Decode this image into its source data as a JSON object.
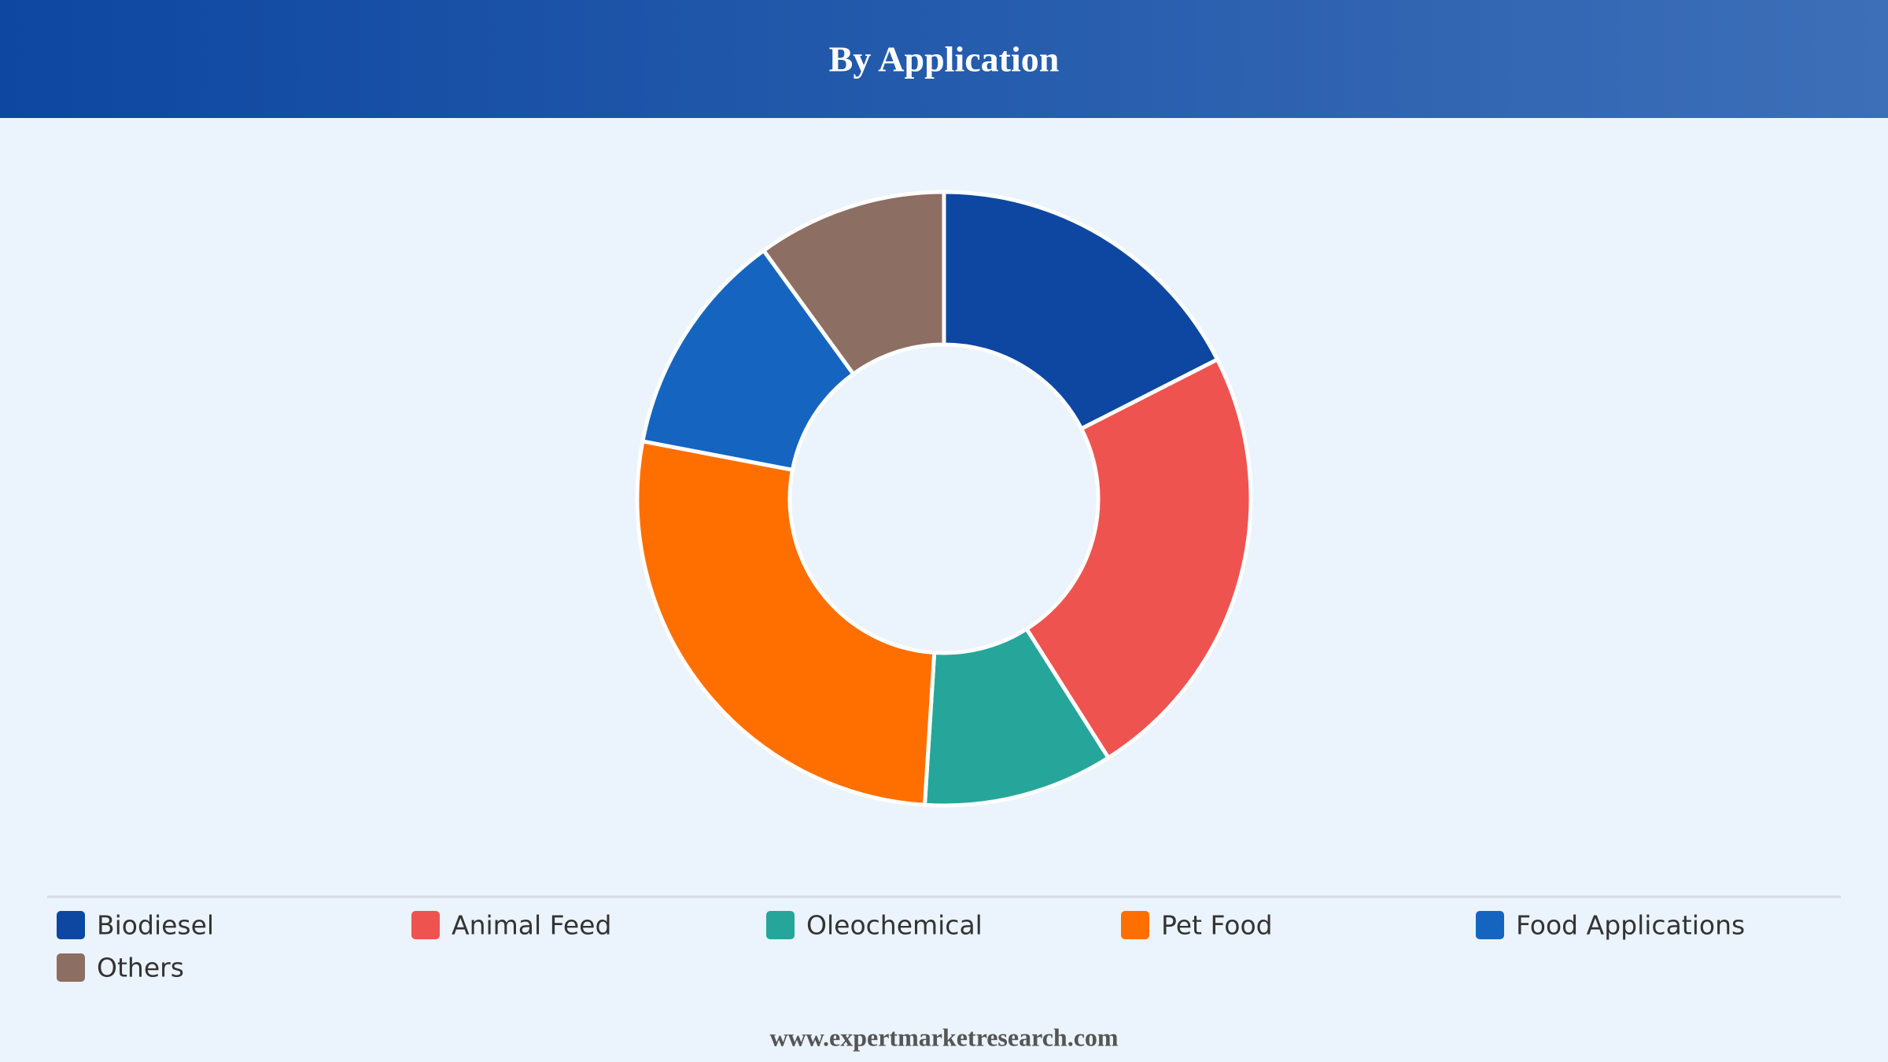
{
  "chart_data": {
    "type": "pie",
    "title": "By Application",
    "categories": [
      "Biodiesel",
      "Animal Feed",
      "Oleochemical",
      "Pet Food",
      "Food Applications",
      "Others"
    ],
    "values": [
      17.5,
      23.5,
      10,
      27,
      12,
      10
    ],
    "colors": [
      "#0d47a1",
      "#ef5350",
      "#26a69a",
      "#ff6f00",
      "#1565c0",
      "#8d6e63"
    ],
    "donut": true
  },
  "footer": "www.expertmarketresearch.com"
}
